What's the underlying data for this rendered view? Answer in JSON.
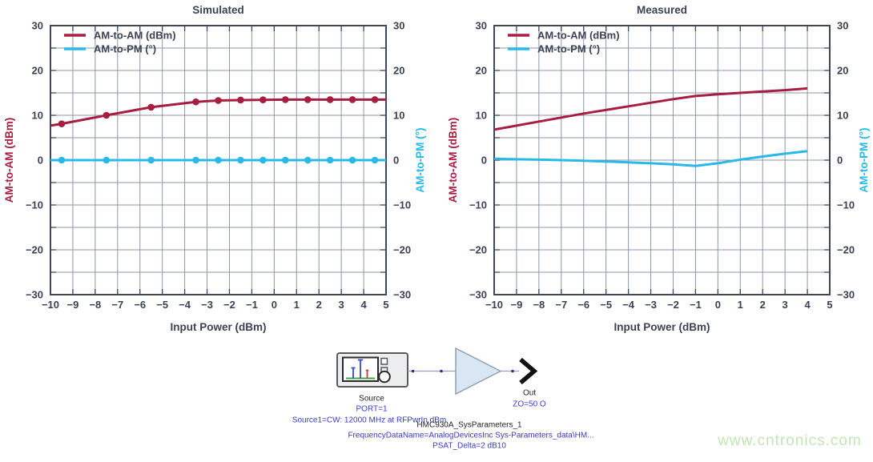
{
  "palette": {
    "crimson": "#A81E40",
    "cyan": "#29B9E8",
    "navy": "#3A4254",
    "grid": "#8E95A8",
    "border": "#3E4759",
    "schematic_blue": "#3A3AC8",
    "schematic_black": "#1F1F1F",
    "amp_fill": "#D9E7F5",
    "watermark_green": "#C3E5B7"
  },
  "chart_data": [
    {
      "id": "simulated",
      "type": "line",
      "title": "Simulated",
      "xlabel": "Input Power (dBm)",
      "ylabel_left": "AM-to-AM (dBm)",
      "ylabel_right": "AM-to-PM (°)",
      "xlim": [
        -10,
        5
      ],
      "ylim": [
        -30,
        30
      ],
      "x_tick_step": 1,
      "y_tick_label_step": 10,
      "grid_y_step": 5,
      "grid": true,
      "legend_position": "top-left",
      "legend": [
        "AM-to-AM (dBm)",
        "AM-to-PM (°)"
      ],
      "series": [
        {
          "name": "AM-to-AM (dBm)",
          "axis": "left",
          "color_key": "crimson",
          "marker": "circle",
          "x": [
            -10,
            -9.5,
            -7.5,
            -5.5,
            -3.5,
            -2.5,
            -1.5,
            -0.5,
            0.5,
            1.5,
            2.5,
            3.5,
            4.5,
            5
          ],
          "y": [
            7.7,
            8.1,
            10.0,
            11.8,
            13.0,
            13.3,
            13.4,
            13.45,
            13.5,
            13.5,
            13.5,
            13.5,
            13.5,
            13.5
          ],
          "marker_indices": [
            1,
            2,
            3,
            4,
            5,
            6,
            7,
            8,
            9,
            10,
            11,
            12
          ]
        },
        {
          "name": "AM-to-PM (°)",
          "axis": "right",
          "color_key": "cyan",
          "marker": "circle",
          "x": [
            -10,
            -9.5,
            -7.5,
            -5.5,
            -3.5,
            -2.5,
            -1.5,
            -0.5,
            0.5,
            1.5,
            2.5,
            3.5,
            4.5,
            5
          ],
          "y": [
            0,
            0,
            0,
            0,
            0,
            0,
            0,
            0,
            0,
            0,
            0,
            0,
            0,
            0
          ],
          "marker_indices": [
            1,
            2,
            3,
            4,
            5,
            6,
            7,
            8,
            9,
            10,
            11,
            12
          ]
        }
      ]
    },
    {
      "id": "measured",
      "type": "line",
      "title": "Measured",
      "xlabel": "Input Power (dBm)",
      "ylabel_left": "AM-to-AM (dBm)",
      "ylabel_right": "AM-to-PM (°)",
      "xlim": [
        -10,
        5
      ],
      "ylim": [
        -30,
        30
      ],
      "x_tick_step": 1,
      "y_tick_label_step": 10,
      "grid_y_step": 5,
      "grid": true,
      "legend_position": "top-left",
      "legend": [
        "AM-to-AM (dBm)",
        "AM-to-PM (°)"
      ],
      "series": [
        {
          "name": "AM-to-AM (dBm)",
          "axis": "left",
          "color_key": "crimson",
          "marker": "none",
          "x": [
            -10,
            -9,
            -8,
            -7,
            -6,
            -5,
            -4,
            -3,
            -2,
            -1,
            0,
            1,
            2,
            3,
            4
          ],
          "y": [
            6.8,
            7.7,
            8.6,
            9.5,
            10.4,
            11.2,
            12.0,
            12.8,
            13.6,
            14.3,
            14.7,
            15.0,
            15.3,
            15.6,
            16.0
          ],
          "marker_indices": []
        },
        {
          "name": "AM-to-PM (°)",
          "axis": "right",
          "color_key": "cyan",
          "marker": "none",
          "x": [
            -10,
            -9,
            -8,
            -7,
            -6,
            -5,
            -4,
            -3,
            -2,
            -1,
            0,
            1,
            2,
            3,
            4
          ],
          "y": [
            0.3,
            0.2,
            0.1,
            0.0,
            -0.15,
            -0.3,
            -0.5,
            -0.7,
            -0.95,
            -1.3,
            -0.7,
            0.1,
            0.8,
            1.45,
            2.0
          ],
          "marker_indices": []
        }
      ]
    }
  ],
  "diagram": {
    "source_label": "Source",
    "source_port": "PORT=1",
    "source_desc": "Source1=CW: 12000 MHz at RFPwrIn dBm",
    "out_label": "Out",
    "out_impedance": "ZO=50 O",
    "component_name": "HMC930A_SysParameters_1",
    "component_param1": "FrequencyDataName=AnalogDevicesInc Sys-Parameters_data\\HM...",
    "component_param2": "PSAT_Delta=2 dB10"
  },
  "watermark": {
    "text": "www.cntronics.com"
  }
}
